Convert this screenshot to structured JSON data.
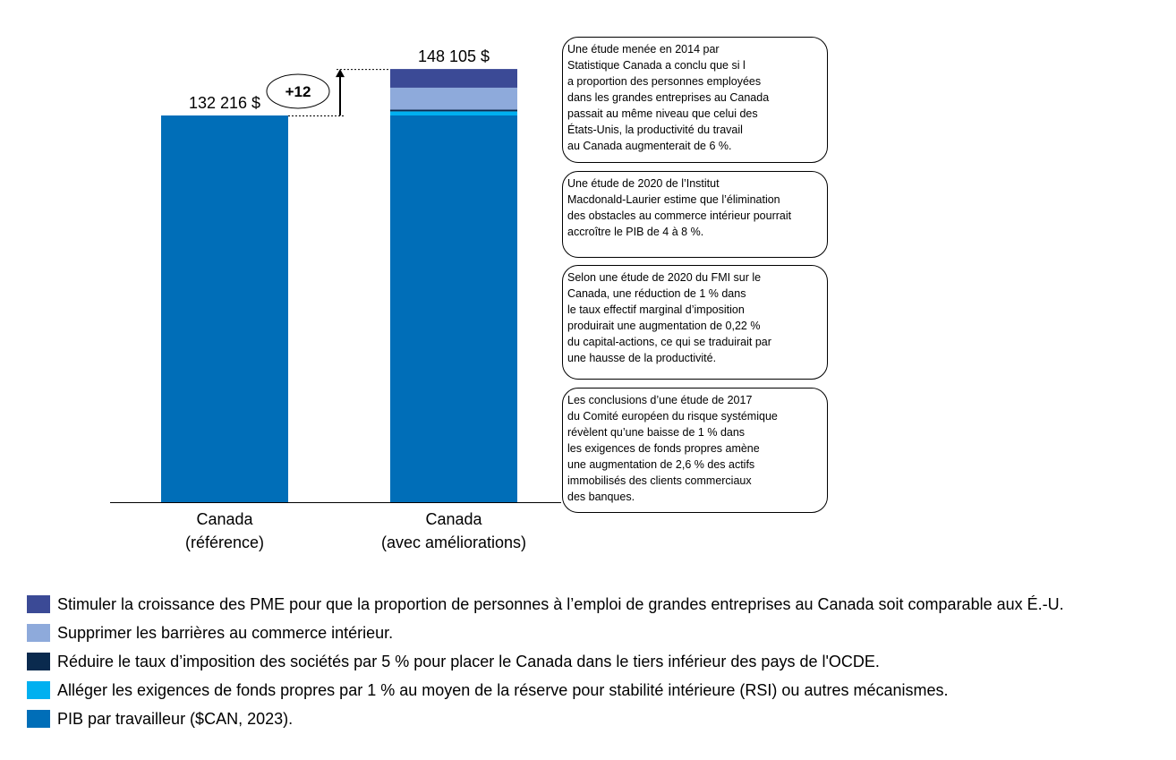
{
  "chart_data": {
    "type": "bar",
    "stacked": true,
    "categories": [
      "Canada\n(référence)",
      "Canada\n(avec améliorations)"
    ],
    "totals": [
      "132 216 $",
      "148 105 $"
    ],
    "difference_label": "+12",
    "ylim": [
      0,
      150000
    ],
    "series": [
      {
        "name": "PIB par travailleur ($CAN, 2023).",
        "color": "#006eb8",
        "values": [
          132216,
          132216
        ]
      },
      {
        "name": "Alléger les exigences de fonds propres par 1 % au moyen de la réserve pour stabilité intérieure (RSI) ou autres mécanismes.",
        "color": "#00b0f0",
        "values": [
          0,
          1400
        ]
      },
      {
        "name": "Réduire le taux d’imposition des sociétés par 5 % pour placer le Canada dans le tiers inférieur des pays de l'OCDE.",
        "color": "#0a2a4e",
        "values": [
          0,
          600
        ]
      },
      {
        "name": "Supprimer les barrières au commerce intérieur.",
        "color": "#8eaadb",
        "values": [
          0,
          7500
        ]
      },
      {
        "name": "Stimuler la croissance des PME pour que la proportion de personnes à l’emploi de grandes entreprises au Canada soit comparable aux É.-U.",
        "color": "#3b4a96",
        "values": [
          0,
          6389
        ]
      }
    ],
    "legend_order": [
      4,
      3,
      2,
      1,
      0
    ],
    "legend_position": "bottom",
    "grid": false
  },
  "annotations": [
    "Une étude menée en 2014 par\nStatistique Canada a conclu que si l\na proportion des personnes employées\ndans les grandes entreprises au Canada\npassait au même niveau que celui des\nÉtats-Unis, la productivité du travail\nau Canada augmenterait de 6 %.",
    "Une étude de 2020 de l’Institut\nMacdonald-Laurier estime que l’élimination\ndes obstacles au commerce intérieur pourrait\naccroître le PIB de 4 à 8 %.",
    "Selon une étude de 2020 du FMI sur le\nCanada, une réduction de 1 % dans\nle taux effectif marginal d’imposition\nproduirait une augmentation de 0,22 %\ndu capital-actions, ce qui se traduirait par\nune hausse de la productivité.",
    "Les conclusions d’une étude de 2017\ndu Comité européen du risque systémique\nrévèlent qu’une baisse de 1 % dans\nles exigences de fonds propres amène\nune augmentation de 2,6 % des actifs\nimmobilisés des clients commerciaux\ndes banques."
  ]
}
